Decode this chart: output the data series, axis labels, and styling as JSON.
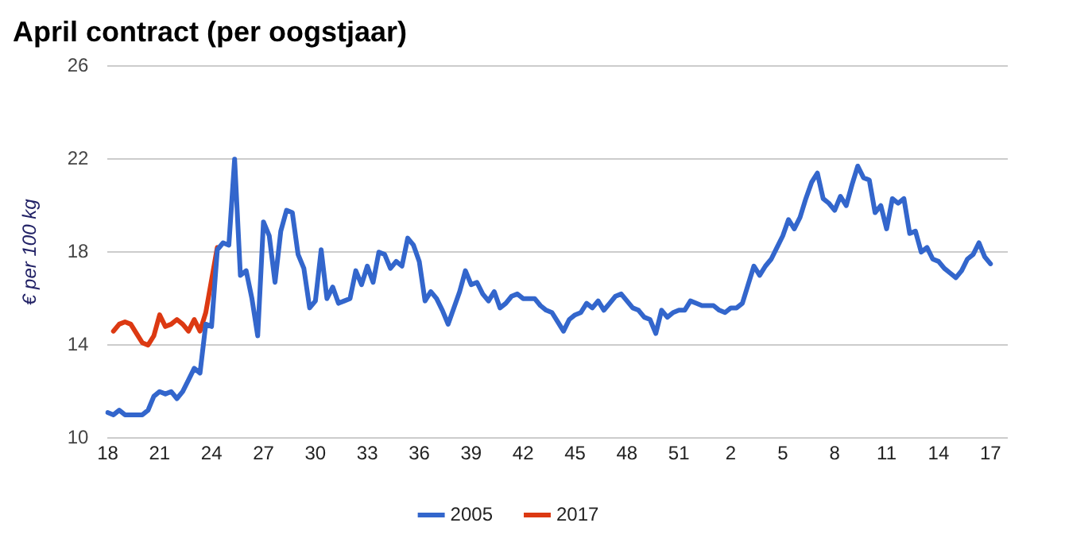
{
  "chart_data": {
    "type": "line",
    "title": "April contract (per oogstjaar)",
    "ylabel": "€ per 100 kg",
    "ylim": [
      10,
      26
    ],
    "yticks": [
      10,
      14,
      18,
      22,
      26
    ],
    "categories": [
      "18",
      null,
      null,
      null,
      null,
      null,
      null,
      null,
      null,
      "21",
      null,
      null,
      null,
      null,
      null,
      null,
      null,
      null,
      "24",
      null,
      null,
      null,
      null,
      null,
      null,
      null,
      null,
      "27",
      null,
      null,
      null,
      null,
      null,
      null,
      null,
      null,
      "30",
      null,
      null,
      null,
      null,
      null,
      null,
      null,
      null,
      "33",
      null,
      null,
      null,
      null,
      null,
      null,
      null,
      null,
      "36",
      null,
      null,
      null,
      null,
      null,
      null,
      null,
      null,
      "39",
      null,
      null,
      null,
      null,
      null,
      null,
      null,
      null,
      "42",
      null,
      null,
      null,
      null,
      null,
      null,
      null,
      null,
      "45",
      null,
      null,
      null,
      null,
      null,
      null,
      null,
      null,
      "48",
      null,
      null,
      null,
      null,
      null,
      null,
      null,
      null,
      "51",
      null,
      null,
      null,
      null,
      null,
      null,
      null,
      null,
      "2",
      null,
      null,
      null,
      null,
      null,
      null,
      null,
      null,
      "5",
      null,
      null,
      null,
      null,
      null,
      null,
      null,
      null,
      "8",
      null,
      null,
      null,
      null,
      null,
      null,
      null,
      null,
      "11",
      null,
      null,
      null,
      null,
      null,
      null,
      null,
      null,
      "14",
      null,
      null,
      null,
      null,
      null,
      null,
      null,
      null,
      "17",
      null,
      null,
      null
    ],
    "grid": "y",
    "legend": "bottom",
    "marker": "none",
    "line_style": "solid",
    "series": [
      {
        "name": "2005",
        "color": "#3366cc",
        "values": [
          11.1,
          11.0,
          11.2,
          11.0,
          11.0,
          11.0,
          11.0,
          11.2,
          11.8,
          12.0,
          11.9,
          12.0,
          11.7,
          12.0,
          12.5,
          13.0,
          12.8,
          14.9,
          14.8,
          18.1,
          18.4,
          18.3,
          22.0,
          17.0,
          17.2,
          16.0,
          14.4,
          19.3,
          18.7,
          16.7,
          18.9,
          19.8,
          19.7,
          17.9,
          17.3,
          15.6,
          15.9,
          18.1,
          16.0,
          16.5,
          15.8,
          15.9,
          16.0,
          17.2,
          16.6,
          17.4,
          16.7,
          18.0,
          17.9,
          17.3,
          17.6,
          17.4,
          18.6,
          18.3,
          17.6,
          15.9,
          16.3,
          16.0,
          15.5,
          14.9,
          15.6,
          16.3,
          17.2,
          16.6,
          16.7,
          16.2,
          15.9,
          16.3,
          15.6,
          15.8,
          16.1,
          16.2,
          16.0,
          16.0,
          16.0,
          15.7,
          15.5,
          15.4,
          15.0,
          14.6,
          15.1,
          15.3,
          15.4,
          15.8,
          15.6,
          15.9,
          15.5,
          15.8,
          16.1,
          16.2,
          15.9,
          15.6,
          15.5,
          15.2,
          15.1,
          14.5,
          15.5,
          15.2,
          15.4,
          15.5,
          15.5,
          15.9,
          15.8,
          15.7,
          15.7,
          15.7,
          15.5,
          15.4,
          15.6,
          15.6,
          15.8,
          16.6,
          17.4,
          17.0,
          17.4,
          17.7,
          18.2,
          18.7,
          19.4,
          19.0,
          19.5,
          20.3,
          21.0,
          21.4,
          20.3,
          20.1,
          19.8,
          20.4,
          20.0,
          20.9,
          21.7,
          21.2,
          21.1,
          19.7,
          20.0,
          19.0,
          20.3,
          20.1,
          20.3,
          18.8,
          18.9,
          18.0,
          18.2,
          17.7,
          17.6,
          17.3,
          17.1,
          16.9,
          17.2,
          17.7,
          17.9,
          18.4,
          17.8,
          17.5,
          null,
          null,
          null
        ]
      },
      {
        "name": "2017",
        "color": "#dc3912",
        "values": [
          null,
          14.6,
          14.9,
          15.0,
          14.9,
          14.5,
          14.1,
          14.0,
          14.4,
          15.3,
          14.8,
          14.9,
          15.1,
          14.9,
          14.6,
          15.1,
          14.6,
          15.4,
          16.8,
          18.2,
          null,
          null,
          null,
          null,
          null,
          null,
          null,
          null,
          null,
          null,
          null,
          null,
          null,
          null,
          null,
          null,
          null,
          null,
          null,
          null,
          null,
          null,
          null,
          null,
          null,
          null,
          null,
          null,
          null,
          null,
          null,
          null,
          null,
          null,
          null,
          null,
          null,
          null,
          null,
          null,
          null,
          null,
          null,
          null,
          null,
          null,
          null,
          null,
          null,
          null,
          null,
          null,
          null,
          null,
          null,
          null,
          null,
          null,
          null,
          null,
          null,
          null,
          null,
          null,
          null,
          null,
          null,
          null,
          null,
          null,
          null,
          null,
          null,
          null,
          null,
          null,
          null,
          null,
          null,
          null,
          null,
          null,
          null,
          null,
          null,
          null,
          null,
          null,
          null,
          null,
          null,
          null,
          null,
          null,
          null,
          null,
          null,
          null,
          null,
          null,
          null,
          null,
          null,
          null,
          null,
          null,
          null,
          null,
          null,
          null,
          null,
          null,
          null,
          null,
          null,
          null,
          null,
          null,
          null,
          null,
          null,
          null,
          null,
          null,
          null,
          null,
          null,
          null,
          null,
          null,
          null,
          null,
          null,
          null,
          null,
          null,
          null
        ]
      }
    ]
  }
}
